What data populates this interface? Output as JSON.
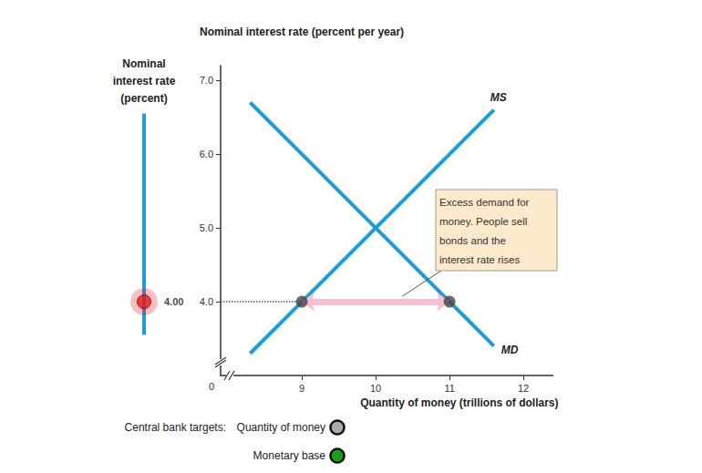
{
  "chart_data": {
    "type": "line",
    "y_label": "Nominal interest rate (percent per year)",
    "x_label": "Quantity of money (trillions of dollars)",
    "x": [
      8.3,
      9,
      10,
      11,
      11.6
    ],
    "series": [
      {
        "name": "MS",
        "color": "#1b9dd9",
        "values": [
          3.3,
          4,
          5,
          6,
          6.6
        ]
      },
      {
        "name": "MD",
        "color": "#1b9dd9",
        "values": [
          6.7,
          6,
          5,
          4,
          3.4
        ]
      }
    ],
    "xlim": [
      7.9,
      12.4
    ],
    "xticks": [
      9,
      10,
      11,
      12
    ],
    "ylim": [
      3.0,
      7.2
    ],
    "yticks": [
      {
        "value": 4,
        "label": "4.0"
      },
      {
        "value": 5,
        "label": "5.0"
      },
      {
        "value": 6,
        "label": "6.0"
      },
      {
        "value": 7,
        "label": "7.0"
      }
    ],
    "origin_label": "0",
    "grid": false,
    "rate_line": {
      "y": 4.0,
      "to_x": 9
    },
    "points": [
      {
        "x": 9,
        "y": 4
      },
      {
        "x": 11,
        "y": 4
      }
    ],
    "arrow": {
      "from": 9,
      "to": 11,
      "y": 4
    },
    "annotation": {
      "text_lines": [
        "Excess demand for",
        "money. People sell",
        "bonds and the",
        "interest rate rises"
      ]
    },
    "slider": {
      "label_lines": [
        "Nominal",
        "interest rate",
        "(percent)"
      ],
      "range": [
        3.55,
        6.55
      ],
      "value": 4.0,
      "value_label": "4.00",
      "color": "#1b9dd9",
      "marker_color": "#e8191c"
    },
    "controls": {
      "label": "Central bank targets:",
      "options": [
        {
          "label": "Quantity of money",
          "color": "#aaaaaa"
        },
        {
          "label": "Monetary base",
          "color": "#1ca01c"
        }
      ]
    }
  }
}
